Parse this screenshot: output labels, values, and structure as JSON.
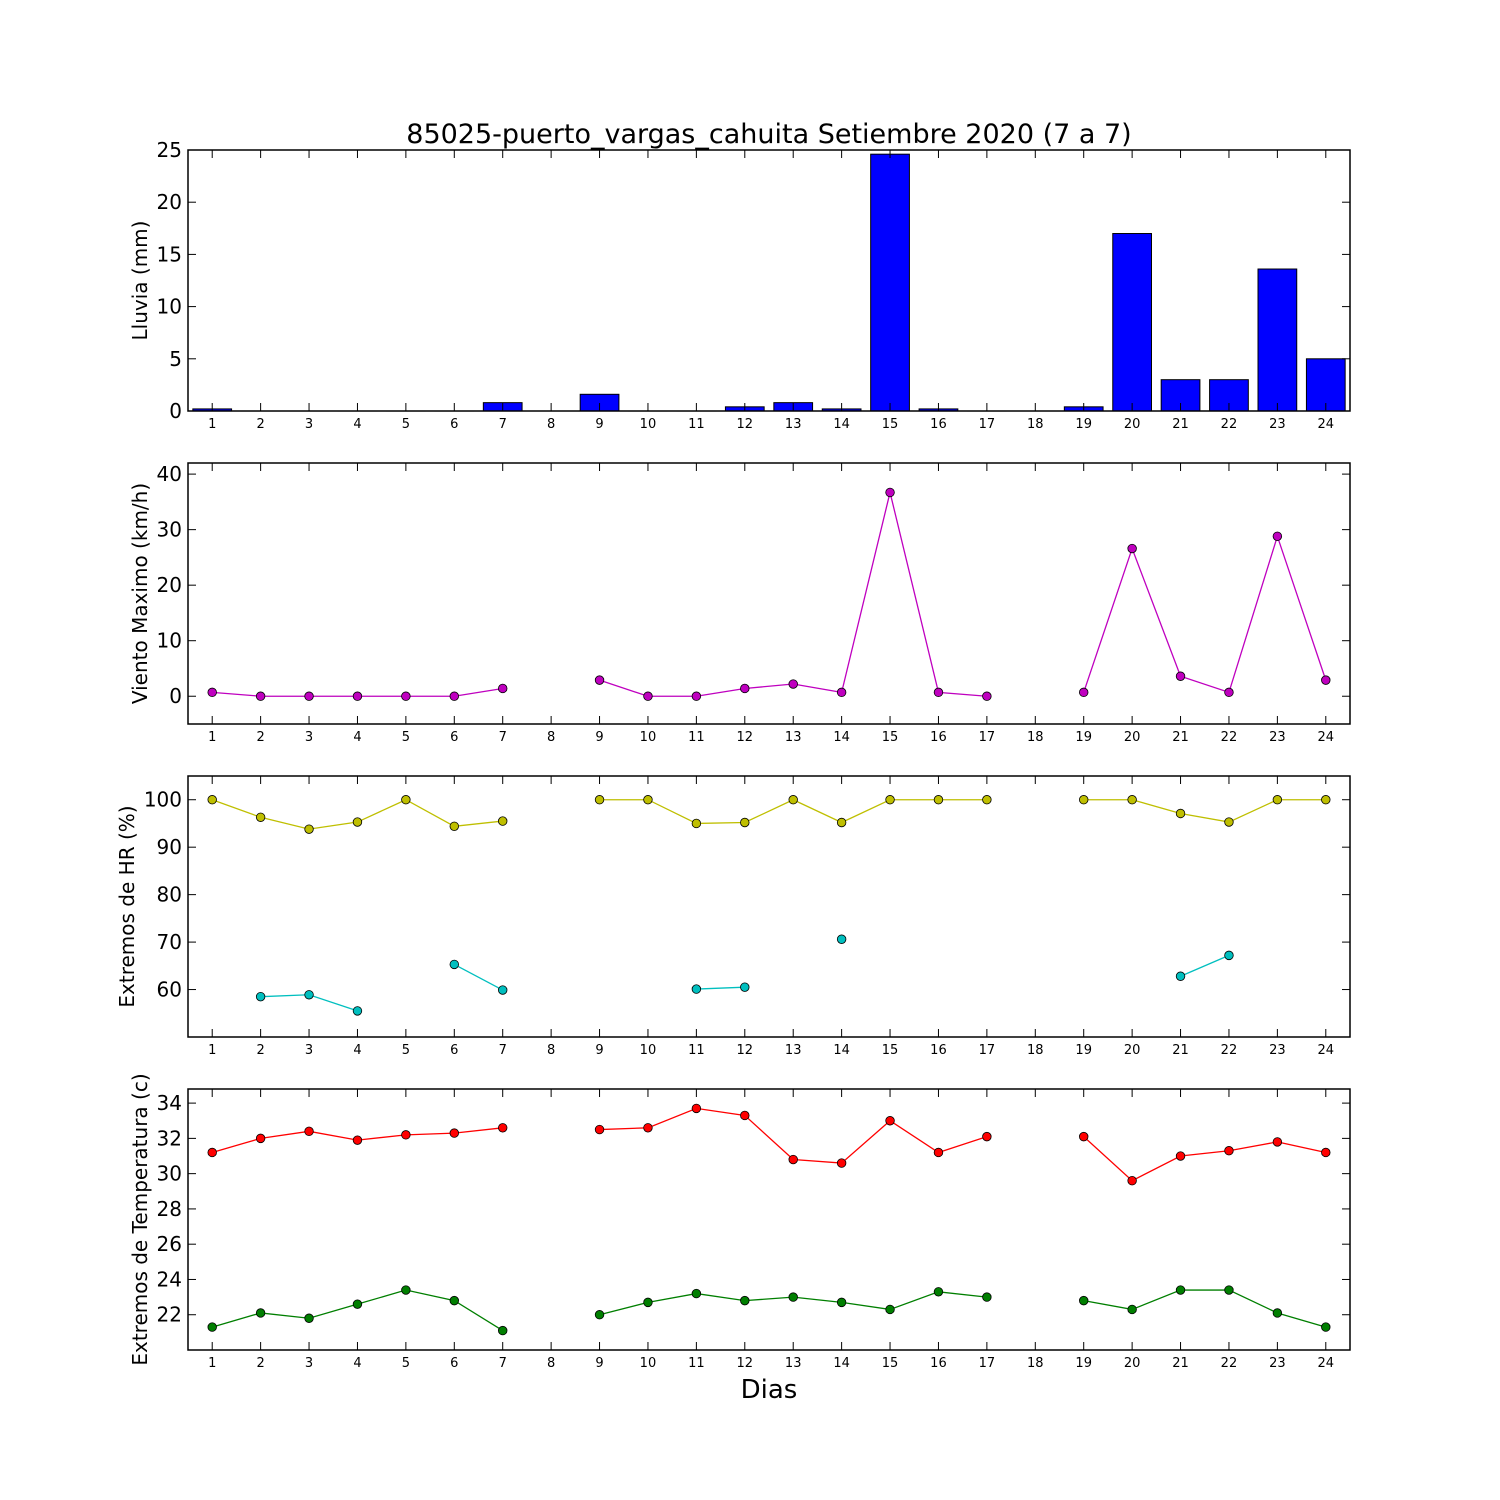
{
  "title": "85025-puerto_vargas_cahuita Setiembre 2020  (7 a 7)",
  "xlabel": "Dias",
  "chart_data": [
    {
      "type": "bar",
      "id": "lluvia",
      "ylabel": "Lluvia (mm)",
      "ylim": [
        0,
        25
      ],
      "yticks": [
        0,
        5,
        10,
        15,
        20,
        25
      ],
      "xlim": [
        0.5,
        24.5
      ],
      "categories": [
        "1",
        "2",
        "3",
        "4",
        "5",
        "6",
        "7",
        "8",
        "9",
        "10",
        "11",
        "12",
        "13",
        "14",
        "15",
        "16",
        "17",
        "18",
        "19",
        "20",
        "21",
        "22",
        "23",
        "24"
      ],
      "values": [
        0.2,
        0,
        0,
        0,
        0,
        0,
        0.8,
        null,
        1.6,
        0,
        0,
        0.4,
        0.8,
        0.2,
        24.6,
        0.2,
        0,
        null,
        0.4,
        17.0,
        3.0,
        3.0,
        13.6,
        5.0
      ],
      "color": "#0000ff",
      "grid": false
    },
    {
      "type": "line",
      "id": "viento",
      "ylabel": "Viento Maximo (km/h)",
      "ylim": [
        -5,
        42
      ],
      "yticks": [
        0,
        10,
        20,
        30,
        40
      ],
      "xlim": [
        0.5,
        24.5
      ],
      "x": [
        1,
        2,
        3,
        4,
        5,
        6,
        7,
        8,
        9,
        10,
        11,
        12,
        13,
        14,
        15,
        16,
        17,
        18,
        19,
        20,
        21,
        22,
        23,
        24
      ],
      "series": [
        {
          "values": [
            0.7,
            0,
            0,
            0,
            0,
            0,
            1.4,
            null,
            2.9,
            0,
            0,
            1.4,
            2.2,
            0.7,
            36.7,
            0.7,
            0,
            null,
            0.7,
            26.6,
            3.6,
            0.7,
            28.8,
            2.9
          ],
          "color": "#bf00bf"
        }
      ],
      "grid": false
    },
    {
      "type": "line",
      "id": "hr",
      "ylabel": "Extremos de HR (%)",
      "ylim": [
        50,
        105
      ],
      "yticks": [
        60,
        70,
        80,
        90,
        100
      ],
      "xlim": [
        0.5,
        24.5
      ],
      "x": [
        1,
        2,
        3,
        4,
        5,
        6,
        7,
        8,
        9,
        10,
        11,
        12,
        13,
        14,
        15,
        16,
        17,
        18,
        19,
        20,
        21,
        22,
        23,
        24
      ],
      "series": [
        {
          "values": [
            100,
            96.3,
            93.8,
            95.3,
            100,
            94.4,
            95.5,
            null,
            100,
            100,
            95.0,
            95.2,
            100,
            95.2,
            100,
            100,
            100,
            null,
            100,
            100,
            97.1,
            95.3,
            100,
            100
          ],
          "color": "#bfbf00"
        },
        {
          "values": [
            null,
            58.5,
            58.9,
            55.5,
            null,
            65.3,
            59.9,
            null,
            null,
            null,
            60.1,
            60.5,
            null,
            70.6,
            null,
            null,
            null,
            null,
            null,
            null,
            62.8,
            67.2,
            null,
            null
          ],
          "color": "#00bfbf"
        }
      ],
      "grid": false
    },
    {
      "type": "line",
      "id": "temperatura",
      "ylabel": "Extremos de Temperatura (c)",
      "ylim": [
        20,
        34.8
      ],
      "yticks": [
        22,
        24,
        26,
        28,
        30,
        32,
        34
      ],
      "xlim": [
        0.5,
        24.5
      ],
      "x": [
        1,
        2,
        3,
        4,
        5,
        6,
        7,
        8,
        9,
        10,
        11,
        12,
        13,
        14,
        15,
        16,
        17,
        18,
        19,
        20,
        21,
        22,
        23,
        24
      ],
      "series": [
        {
          "values": [
            31.2,
            32.0,
            32.4,
            31.9,
            32.2,
            32.3,
            32.6,
            null,
            32.5,
            32.6,
            33.7,
            33.3,
            30.8,
            30.6,
            33.0,
            31.2,
            32.1,
            null,
            32.1,
            29.6,
            31.0,
            31.3,
            31.8,
            31.2
          ],
          "color": "#ff0000"
        },
        {
          "values": [
            21.3,
            22.1,
            21.8,
            22.6,
            23.4,
            22.8,
            21.1,
            null,
            22.0,
            22.7,
            23.2,
            22.8,
            23.0,
            22.7,
            22.3,
            23.3,
            23.0,
            null,
            22.8,
            22.3,
            23.4,
            23.4,
            22.1,
            21.3
          ],
          "color": "#007f00"
        }
      ],
      "grid": false
    }
  ]
}
